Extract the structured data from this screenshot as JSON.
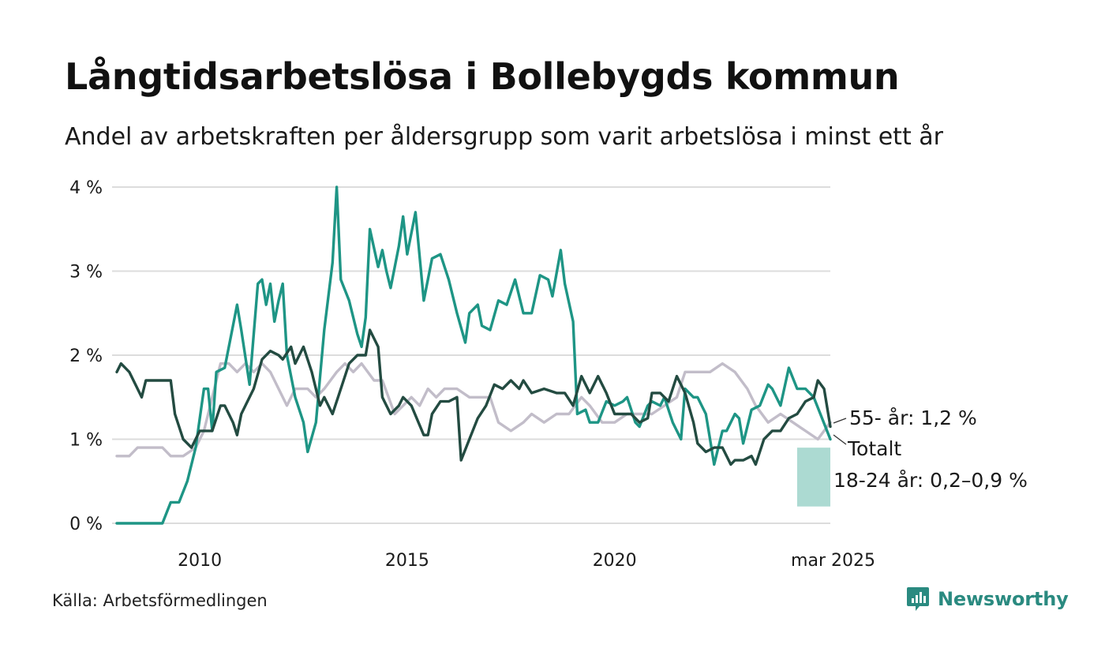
{
  "title": "Långtidsarbetslösa i Bollebygds kommun",
  "subtitle": "Andel av arbetskraften per åldersgrupp som varit arbetslösa i minst ett år",
  "source": "Källa: Arbetsförmedlingen",
  "brand": {
    "name": "Newsworthy",
    "icon": "newsworthy-logo-icon",
    "color": "#2a8a80"
  },
  "chart_data": {
    "type": "line",
    "x_unit": "year",
    "xlim": [
      2008.0,
      2025.2
    ],
    "ylim": [
      0,
      4
    ],
    "y_ticks": [
      0,
      1,
      2,
      3,
      4
    ],
    "y_tick_labels": [
      "0 %",
      "1 %",
      "2 %",
      "3 %",
      "4 %"
    ],
    "x_ticks": [
      2010,
      2015,
      2020,
      2025.2
    ],
    "x_tick_labels": [
      "2010",
      "2015",
      "2020",
      "mar 2025"
    ],
    "grid": "horizontal",
    "series": [
      {
        "name": "55- år",
        "end_label": "55- år: 1,2 %",
        "color": "#c2bdc9",
        "points": [
          [
            2008.0,
            0.8
          ],
          [
            2008.3,
            0.8
          ],
          [
            2008.5,
            0.9
          ],
          [
            2008.8,
            0.9
          ],
          [
            2009.1,
            0.9
          ],
          [
            2009.3,
            0.8
          ],
          [
            2009.6,
            0.8
          ],
          [
            2009.9,
            0.9
          ],
          [
            2010.1,
            1.1
          ],
          [
            2010.3,
            1.5
          ],
          [
            2010.5,
            1.9
          ],
          [
            2010.7,
            1.9
          ],
          [
            2010.9,
            1.8
          ],
          [
            2011.1,
            1.9
          ],
          [
            2011.3,
            1.8
          ],
          [
            2011.5,
            1.9
          ],
          [
            2011.7,
            1.8
          ],
          [
            2011.9,
            1.6
          ],
          [
            2012.1,
            1.4
          ],
          [
            2012.3,
            1.6
          ],
          [
            2012.6,
            1.6
          ],
          [
            2012.8,
            1.5
          ],
          [
            2013.0,
            1.6
          ],
          [
            2013.3,
            1.8
          ],
          [
            2013.5,
            1.9
          ],
          [
            2013.7,
            1.8
          ],
          [
            2013.9,
            1.9
          ],
          [
            2014.2,
            1.7
          ],
          [
            2014.4,
            1.7
          ],
          [
            2014.7,
            1.3
          ],
          [
            2014.9,
            1.4
          ],
          [
            2015.1,
            1.5
          ],
          [
            2015.3,
            1.4
          ],
          [
            2015.5,
            1.6
          ],
          [
            2015.7,
            1.5
          ],
          [
            2015.9,
            1.6
          ],
          [
            2016.2,
            1.6
          ],
          [
            2016.5,
            1.5
          ],
          [
            2016.8,
            1.5
          ],
          [
            2017.0,
            1.5
          ],
          [
            2017.2,
            1.2
          ],
          [
            2017.5,
            1.1
          ],
          [
            2017.8,
            1.2
          ],
          [
            2018.0,
            1.3
          ],
          [
            2018.3,
            1.2
          ],
          [
            2018.6,
            1.3
          ],
          [
            2018.9,
            1.3
          ],
          [
            2019.2,
            1.5
          ],
          [
            2019.4,
            1.4
          ],
          [
            2019.7,
            1.2
          ],
          [
            2020.0,
            1.2
          ],
          [
            2020.3,
            1.3
          ],
          [
            2020.6,
            1.3
          ],
          [
            2020.9,
            1.3
          ],
          [
            2021.2,
            1.4
          ],
          [
            2021.5,
            1.5
          ],
          [
            2021.7,
            1.8
          ],
          [
            2022.0,
            1.8
          ],
          [
            2022.3,
            1.8
          ],
          [
            2022.6,
            1.9
          ],
          [
            2022.9,
            1.8
          ],
          [
            2023.2,
            1.6
          ],
          [
            2023.4,
            1.4
          ],
          [
            2023.7,
            1.2
          ],
          [
            2024.0,
            1.3
          ],
          [
            2024.3,
            1.2
          ],
          [
            2024.6,
            1.1
          ],
          [
            2024.9,
            1.0
          ],
          [
            2025.2,
            1.2
          ]
        ]
      },
      {
        "name": "Totalt",
        "end_label": "Totalt",
        "color": "#234b41",
        "points": [
          [
            2008.0,
            1.8
          ],
          [
            2008.1,
            1.9
          ],
          [
            2008.3,
            1.8
          ],
          [
            2008.5,
            1.6
          ],
          [
            2008.6,
            1.5
          ],
          [
            2008.7,
            1.7
          ],
          [
            2009.0,
            1.7
          ],
          [
            2009.3,
            1.7
          ],
          [
            2009.4,
            1.3
          ],
          [
            2009.6,
            1.0
          ],
          [
            2009.8,
            0.9
          ],
          [
            2010.0,
            1.1
          ],
          [
            2010.3,
            1.1
          ],
          [
            2010.5,
            1.4
          ],
          [
            2010.6,
            1.4
          ],
          [
            2010.8,
            1.2
          ],
          [
            2010.9,
            1.05
          ],
          [
            2011.0,
            1.3
          ],
          [
            2011.3,
            1.6
          ],
          [
            2011.5,
            1.95
          ],
          [
            2011.7,
            2.05
          ],
          [
            2011.9,
            2.0
          ],
          [
            2012.0,
            1.95
          ],
          [
            2012.2,
            2.1
          ],
          [
            2012.3,
            1.9
          ],
          [
            2012.5,
            2.1
          ],
          [
            2012.7,
            1.8
          ],
          [
            2012.9,
            1.4
          ],
          [
            2013.0,
            1.5
          ],
          [
            2013.2,
            1.3
          ],
          [
            2013.4,
            1.6
          ],
          [
            2013.6,
            1.9
          ],
          [
            2013.8,
            2.0
          ],
          [
            2014.0,
            2.0
          ],
          [
            2014.1,
            2.3
          ],
          [
            2014.3,
            2.1
          ],
          [
            2014.4,
            1.5
          ],
          [
            2014.6,
            1.3
          ],
          [
            2014.8,
            1.4
          ],
          [
            2014.9,
            1.5
          ],
          [
            2015.1,
            1.4
          ],
          [
            2015.4,
            1.05
          ],
          [
            2015.5,
            1.05
          ],
          [
            2015.6,
            1.3
          ],
          [
            2015.8,
            1.45
          ],
          [
            2016.0,
            1.45
          ],
          [
            2016.2,
            1.5
          ],
          [
            2016.3,
            0.75
          ],
          [
            2016.5,
            1.0
          ],
          [
            2016.7,
            1.25
          ],
          [
            2016.9,
            1.4
          ],
          [
            2017.1,
            1.65
          ],
          [
            2017.3,
            1.6
          ],
          [
            2017.5,
            1.7
          ],
          [
            2017.7,
            1.6
          ],
          [
            2017.8,
            1.7
          ],
          [
            2018.0,
            1.55
          ],
          [
            2018.3,
            1.6
          ],
          [
            2018.6,
            1.55
          ],
          [
            2018.8,
            1.55
          ],
          [
            2019.0,
            1.4
          ],
          [
            2019.2,
            1.75
          ],
          [
            2019.4,
            1.55
          ],
          [
            2019.6,
            1.75
          ],
          [
            2019.8,
            1.55
          ],
          [
            2020.0,
            1.3
          ],
          [
            2020.2,
            1.3
          ],
          [
            2020.4,
            1.3
          ],
          [
            2020.6,
            1.2
          ],
          [
            2020.8,
            1.25
          ],
          [
            2020.9,
            1.55
          ],
          [
            2021.1,
            1.55
          ],
          [
            2021.3,
            1.45
          ],
          [
            2021.5,
            1.75
          ],
          [
            2021.7,
            1.55
          ],
          [
            2021.9,
            1.2
          ],
          [
            2022.0,
            0.95
          ],
          [
            2022.2,
            0.85
          ],
          [
            2022.4,
            0.9
          ],
          [
            2022.6,
            0.9
          ],
          [
            2022.8,
            0.7
          ],
          [
            2022.9,
            0.75
          ],
          [
            2023.1,
            0.75
          ],
          [
            2023.3,
            0.8
          ],
          [
            2023.4,
            0.7
          ],
          [
            2023.6,
            1.0
          ],
          [
            2023.8,
            1.1
          ],
          [
            2024.0,
            1.1
          ],
          [
            2024.2,
            1.25
          ],
          [
            2024.4,
            1.3
          ],
          [
            2024.6,
            1.45
          ],
          [
            2024.8,
            1.5
          ],
          [
            2024.9,
            1.7
          ],
          [
            2025.05,
            1.6
          ],
          [
            2025.2,
            1.15
          ]
        ]
      },
      {
        "name": "18-24 år",
        "end_label": "18-24 år: 0,2–0,9 %",
        "color": "#1e9585",
        "band": {
          "x": [
            2024.4,
            2025.2
          ],
          "y": [
            0.2,
            0.9
          ],
          "color": "#a8d8d0"
        },
        "points": [
          [
            2008.0,
            0.0
          ],
          [
            2008.3,
            0.0
          ],
          [
            2008.6,
            0.0
          ],
          [
            2008.9,
            0.0
          ],
          [
            2009.1,
            0.0
          ],
          [
            2009.3,
            0.25
          ],
          [
            2009.5,
            0.25
          ],
          [
            2009.7,
            0.5
          ],
          [
            2009.9,
            0.9
          ],
          [
            2010.1,
            1.6
          ],
          [
            2010.2,
            1.6
          ],
          [
            2010.3,
            1.1
          ],
          [
            2010.4,
            1.8
          ],
          [
            2010.6,
            1.85
          ],
          [
            2010.8,
            2.35
          ],
          [
            2010.9,
            2.6
          ],
          [
            2011.0,
            2.3
          ],
          [
            2011.2,
            1.65
          ],
          [
            2011.4,
            2.85
          ],
          [
            2011.5,
            2.9
          ],
          [
            2011.6,
            2.6
          ],
          [
            2011.7,
            2.85
          ],
          [
            2011.8,
            2.4
          ],
          [
            2011.9,
            2.65
          ],
          [
            2012.0,
            2.85
          ],
          [
            2012.1,
            2.0
          ],
          [
            2012.3,
            1.5
          ],
          [
            2012.5,
            1.2
          ],
          [
            2012.6,
            0.85
          ],
          [
            2012.8,
            1.2
          ],
          [
            2013.0,
            2.3
          ],
          [
            2013.2,
            3.1
          ],
          [
            2013.3,
            4.0
          ],
          [
            2013.4,
            2.9
          ],
          [
            2013.6,
            2.65
          ],
          [
            2013.8,
            2.25
          ],
          [
            2013.9,
            2.1
          ],
          [
            2014.0,
            2.45
          ],
          [
            2014.1,
            3.5
          ],
          [
            2014.3,
            3.05
          ],
          [
            2014.4,
            3.25
          ],
          [
            2014.5,
            3.0
          ],
          [
            2014.6,
            2.8
          ],
          [
            2014.8,
            3.3
          ],
          [
            2014.9,
            3.65
          ],
          [
            2015.0,
            3.2
          ],
          [
            2015.2,
            3.7
          ],
          [
            2015.4,
            2.65
          ],
          [
            2015.6,
            3.15
          ],
          [
            2015.8,
            3.2
          ],
          [
            2016.0,
            2.9
          ],
          [
            2016.2,
            2.5
          ],
          [
            2016.4,
            2.15
          ],
          [
            2016.5,
            2.5
          ],
          [
            2016.7,
            2.6
          ],
          [
            2016.8,
            2.35
          ],
          [
            2017.0,
            2.3
          ],
          [
            2017.2,
            2.65
          ],
          [
            2017.4,
            2.6
          ],
          [
            2017.6,
            2.9
          ],
          [
            2017.8,
            2.5
          ],
          [
            2018.0,
            2.5
          ],
          [
            2018.2,
            2.95
          ],
          [
            2018.4,
            2.9
          ],
          [
            2018.5,
            2.7
          ],
          [
            2018.7,
            3.25
          ],
          [
            2018.8,
            2.85
          ],
          [
            2019.0,
            2.4
          ],
          [
            2019.1,
            1.3
          ],
          [
            2019.3,
            1.35
          ],
          [
            2019.4,
            1.2
          ],
          [
            2019.6,
            1.2
          ],
          [
            2019.8,
            1.45
          ],
          [
            2020.0,
            1.4
          ],
          [
            2020.2,
            1.45
          ],
          [
            2020.3,
            1.5
          ],
          [
            2020.5,
            1.2
          ],
          [
            2020.6,
            1.15
          ],
          [
            2020.8,
            1.4
          ],
          [
            2020.9,
            1.45
          ],
          [
            2021.1,
            1.4
          ],
          [
            2021.2,
            1.5
          ],
          [
            2021.4,
            1.2
          ],
          [
            2021.6,
            1.0
          ],
          [
            2021.7,
            1.6
          ],
          [
            2021.9,
            1.5
          ],
          [
            2022.0,
            1.5
          ],
          [
            2022.2,
            1.3
          ],
          [
            2022.3,
            1.0
          ],
          [
            2022.4,
            0.7
          ],
          [
            2022.6,
            1.1
          ],
          [
            2022.7,
            1.1
          ],
          [
            2022.9,
            1.3
          ],
          [
            2023.0,
            1.25
          ],
          [
            2023.1,
            0.95
          ],
          [
            2023.3,
            1.35
          ],
          [
            2023.5,
            1.4
          ],
          [
            2023.7,
            1.65
          ],
          [
            2023.8,
            1.6
          ],
          [
            2024.0,
            1.4
          ],
          [
            2024.2,
            1.85
          ],
          [
            2024.4,
            1.6
          ],
          [
            2024.6,
            1.6
          ],
          [
            2024.8,
            1.5
          ],
          [
            2025.0,
            1.25
          ],
          [
            2025.2,
            1.0
          ]
        ]
      }
    ]
  }
}
